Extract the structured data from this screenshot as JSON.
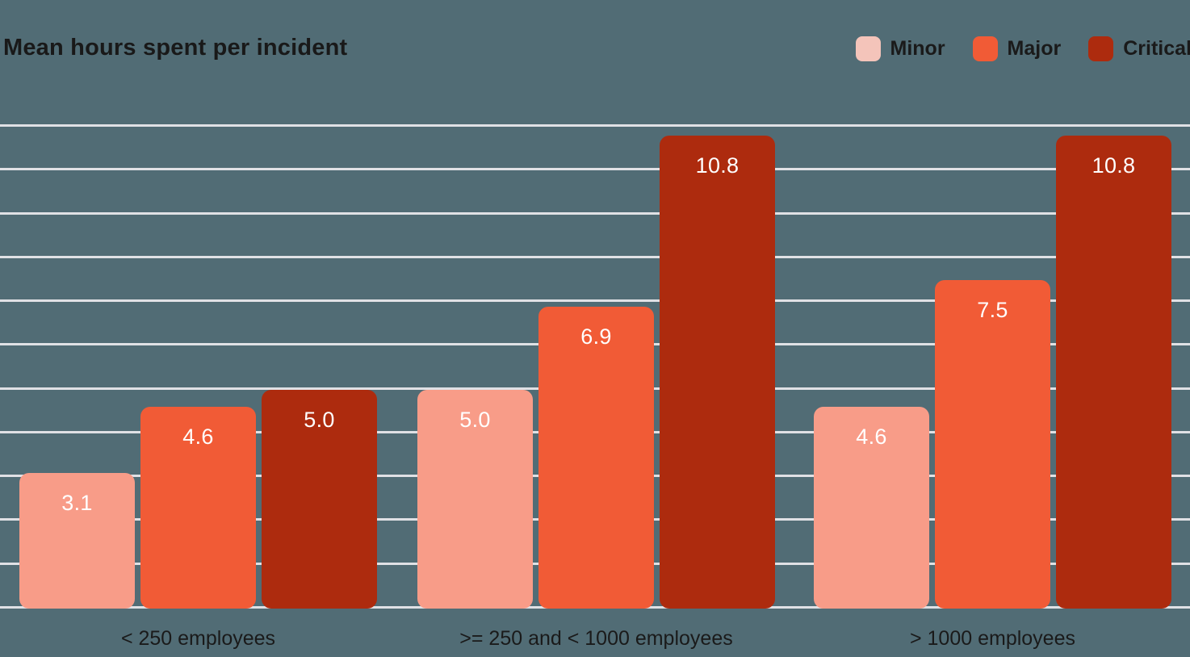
{
  "header": {
    "title": "Mean hours spent per incident"
  },
  "colors": {
    "background": "#516C75",
    "gridline": "#E0E1E5",
    "title_text": "#191919",
    "axis_text": "#1A1A1A",
    "value_label_text": "#FFFFFF"
  },
  "chart_data": {
    "type": "bar",
    "title": "Mean hours spent per incident",
    "xlabel": "",
    "ylabel": "",
    "categories": [
      "< 250 employees",
      ">= 250 and < 1000 employees",
      "> 1000 employees"
    ],
    "series": [
      {
        "name": "Minor",
        "color": "#F89C88",
        "legend_swatch_color": "#F4C4BA",
        "values": [
          3.1,
          5.0,
          4.6
        ]
      },
      {
        "name": "Major",
        "color": "#F15B36",
        "legend_swatch_color": "#F15B36",
        "values": [
          4.6,
          6.9,
          7.5
        ]
      },
      {
        "name": "Critical",
        "color": "#AD2B0E",
        "legend_swatch_color": "#AD2B0E",
        "values": [
          5.0,
          10.8,
          10.8
        ]
      }
    ],
    "ylim": [
      0,
      11
    ],
    "gridline_step": 1,
    "grid": true,
    "legend_position": "top-right",
    "value_labels": "one-decimal-inside-bar-top"
  }
}
